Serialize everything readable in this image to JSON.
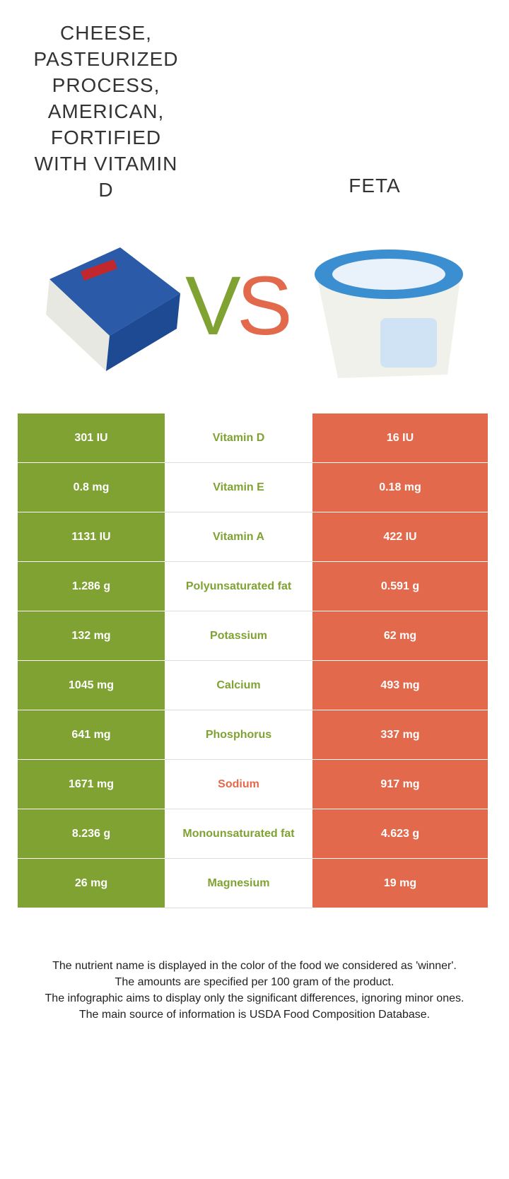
{
  "header": {
    "left_title": "CHEESE, PASTEURIZED PROCESS, AMERICAN, FORTIFIED WITH VITAMIN D",
    "right_title": "FETA",
    "vs_left": "V",
    "vs_right": "S",
    "left_color": "#7fa232",
    "right_color": "#e2694b"
  },
  "table": {
    "rows": [
      {
        "left": "301 IU",
        "nutrient": "Vitamin D",
        "right": "16 IU",
        "color": "#7fa232"
      },
      {
        "left": "0.8 mg",
        "nutrient": "Vitamin E",
        "right": "0.18 mg",
        "color": "#7fa232"
      },
      {
        "left": "1131 IU",
        "nutrient": "Vitamin A",
        "right": "422 IU",
        "color": "#7fa232"
      },
      {
        "left": "1.286 g",
        "nutrient": "Polyunsaturated fat",
        "right": "0.591 g",
        "color": "#7fa232"
      },
      {
        "left": "132 mg",
        "nutrient": "Potassium",
        "right": "62 mg",
        "color": "#7fa232"
      },
      {
        "left": "1045 mg",
        "nutrient": "Calcium",
        "right": "493 mg",
        "color": "#7fa232"
      },
      {
        "left": "641 mg",
        "nutrient": "Phosphorus",
        "right": "337 mg",
        "color": "#7fa232"
      },
      {
        "left": "1671 mg",
        "nutrient": "Sodium",
        "right": "917 mg",
        "color": "#e2694b"
      },
      {
        "left": "8.236 g",
        "nutrient": "Monounsaturated fat",
        "right": "4.623 g",
        "color": "#7fa232"
      },
      {
        "left": "26 mg",
        "nutrient": "Magnesium",
        "right": "19 mg",
        "color": "#7fa232"
      }
    ]
  },
  "footer": {
    "notes": [
      "The nutrient name is displayed in the color of the food we considered as 'winner'.",
      "The amounts are specified per 100 gram of the product.",
      "The infographic aims to display only the significant differences, ignoring minor ones.",
      "The main source of information is USDA Food Composition Database."
    ]
  }
}
